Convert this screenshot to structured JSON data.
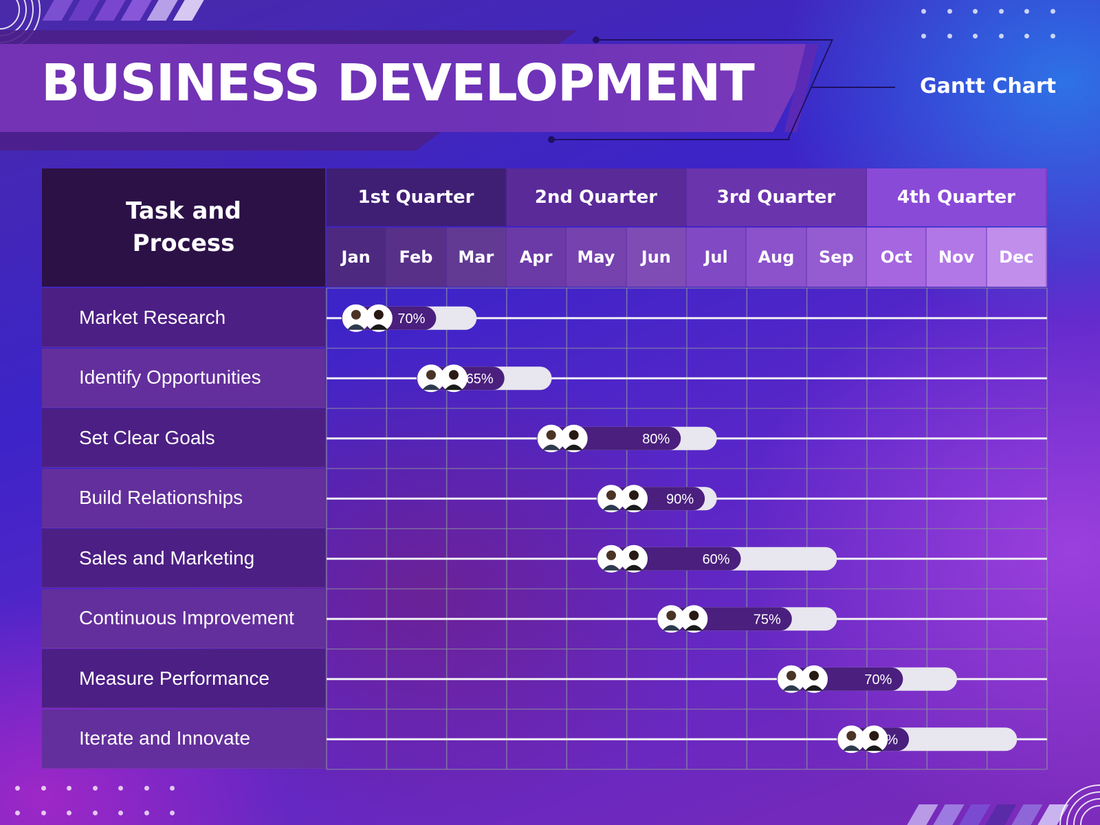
{
  "header": {
    "title": "BUSINESS DEVELOPMENT",
    "subtitle": "Gantt Chart"
  },
  "table": {
    "task_header": "Task and\nProcess",
    "quarters": [
      "1st Quarter",
      "2nd Quarter",
      "3rd Quarter",
      "4th Quarter"
    ],
    "months": [
      "Jan",
      "Feb",
      "Mar",
      "Apr",
      "May",
      "Jun",
      "Jul",
      "Aug",
      "Sep",
      "Oct",
      "Nov",
      "Dec"
    ]
  },
  "colors": {
    "quarter_bg": [
      "#3f1f74",
      "#5a2a99",
      "#6a34ad",
      "#8a4ad8"
    ],
    "month_bg": [
      "#4d2a80",
      "#583088",
      "#623a93",
      "#6c3aa6",
      "#7542ae",
      "#7f4cb6",
      "#8149c4",
      "#8b52cb",
      "#955cd1",
      "#a566e0",
      "#b277e6",
      "#c18eec"
    ],
    "bar_fill": "#4a1f7e",
    "bar_track": "#e8e6ee",
    "row_line": "#f0eef5",
    "grid_line": "#8a8aa0"
  },
  "chart_data": {
    "type": "gantt",
    "title": "BUSINESS DEVELOPMENT",
    "subtitle": "Gantt Chart",
    "x_categories": [
      "Jan",
      "Feb",
      "Mar",
      "Apr",
      "May",
      "Jun",
      "Jul",
      "Aug",
      "Sep",
      "Oct",
      "Nov",
      "Dec"
    ],
    "x_groups": [
      {
        "name": "1st Quarter",
        "months": [
          "Jan",
          "Feb",
          "Mar"
        ]
      },
      {
        "name": "2nd Quarter",
        "months": [
          "Apr",
          "May",
          "Jun"
        ]
      },
      {
        "name": "3rd Quarter",
        "months": [
          "Jul",
          "Aug",
          "Sep"
        ]
      },
      {
        "name": "4th Quarter",
        "months": [
          "Oct",
          "Nov",
          "Dec"
        ]
      }
    ],
    "tasks": [
      {
        "name": "Market Research",
        "start": 0.25,
        "end": 2.5,
        "progress": 70,
        "label": "70%"
      },
      {
        "name": "Identify Opportunities",
        "start": 1.5,
        "end": 3.75,
        "progress": 65,
        "label": "65%"
      },
      {
        "name": "Set Clear Goals",
        "start": 3.5,
        "end": 6.5,
        "progress": 80,
        "label": "80%"
      },
      {
        "name": "Build Relationships",
        "start": 4.5,
        "end": 6.5,
        "progress": 90,
        "label": "90%"
      },
      {
        "name": "Sales and Marketing",
        "start": 4.5,
        "end": 8.5,
        "progress": 60,
        "label": "60%"
      },
      {
        "name": "Continuous Improvement",
        "start": 5.5,
        "end": 8.5,
        "progress": 75,
        "label": "75%"
      },
      {
        "name": "Measure Performance",
        "start": 7.5,
        "end": 10.5,
        "progress": 70,
        "label": "70%"
      },
      {
        "name": "Iterate and Innovate",
        "start": 8.5,
        "end": 11.5,
        "progress": 40,
        "label": "40%"
      }
    ]
  }
}
